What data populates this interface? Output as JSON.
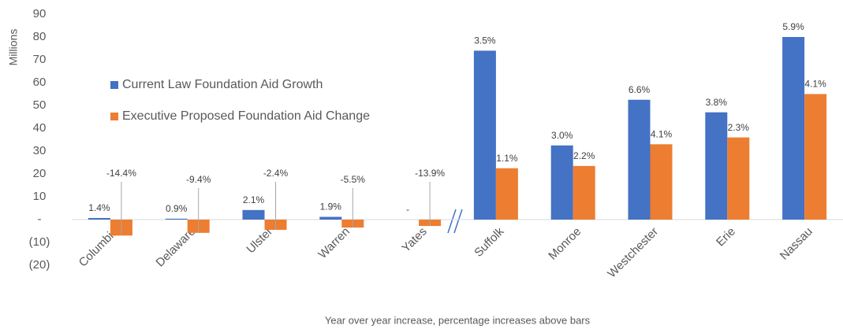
{
  "chart_data": {
    "type": "bar",
    "y_axis_label": "Millions",
    "x_axis_label": "Year over year increase, percentage increases above bars",
    "categories": [
      "Columbia",
      "Delaware",
      "Ulster",
      "Warren",
      "Yates",
      "Suffolk",
      "Monroe",
      "Westchester",
      "Erie",
      "Nassau"
    ],
    "series": [
      {
        "name": "Current Law Foundation Aid Growth",
        "color": "#4472c4",
        "values": [
          0.7,
          0.4,
          4.2,
          1.2,
          0,
          74,
          32.5,
          52.5,
          47,
          80
        ],
        "labels": [
          "1.4%",
          "0.9%",
          "2.1%",
          "1.9%",
          "-",
          "3.5%",
          "3.0%",
          "6.6%",
          "3.8%",
          "5.9%"
        ]
      },
      {
        "name": "Executive Proposed Foundation Aid Change",
        "color": "#ed7d31",
        "values": [
          -7,
          -5.8,
          -4.5,
          -3.5,
          -2.8,
          22.5,
          23.5,
          33,
          36,
          55
        ],
        "labels": [
          "-14.4%",
          "-9.4%",
          "-2.4%",
          "-5.5%",
          "-13.9%",
          "1.1%",
          "2.2%",
          "4.1%",
          "2.3%",
          "4.1%"
        ]
      }
    ],
    "ylim": [
      -20,
      90
    ],
    "yticks": [
      {
        "value": -20,
        "label": "(20)"
      },
      {
        "value": -10,
        "label": "(10)"
      },
      {
        "value": 0,
        "label": "-"
      },
      10,
      20,
      30,
      40,
      50,
      60,
      70,
      80,
      90
    ],
    "legend": "upper left",
    "grid": false
  }
}
